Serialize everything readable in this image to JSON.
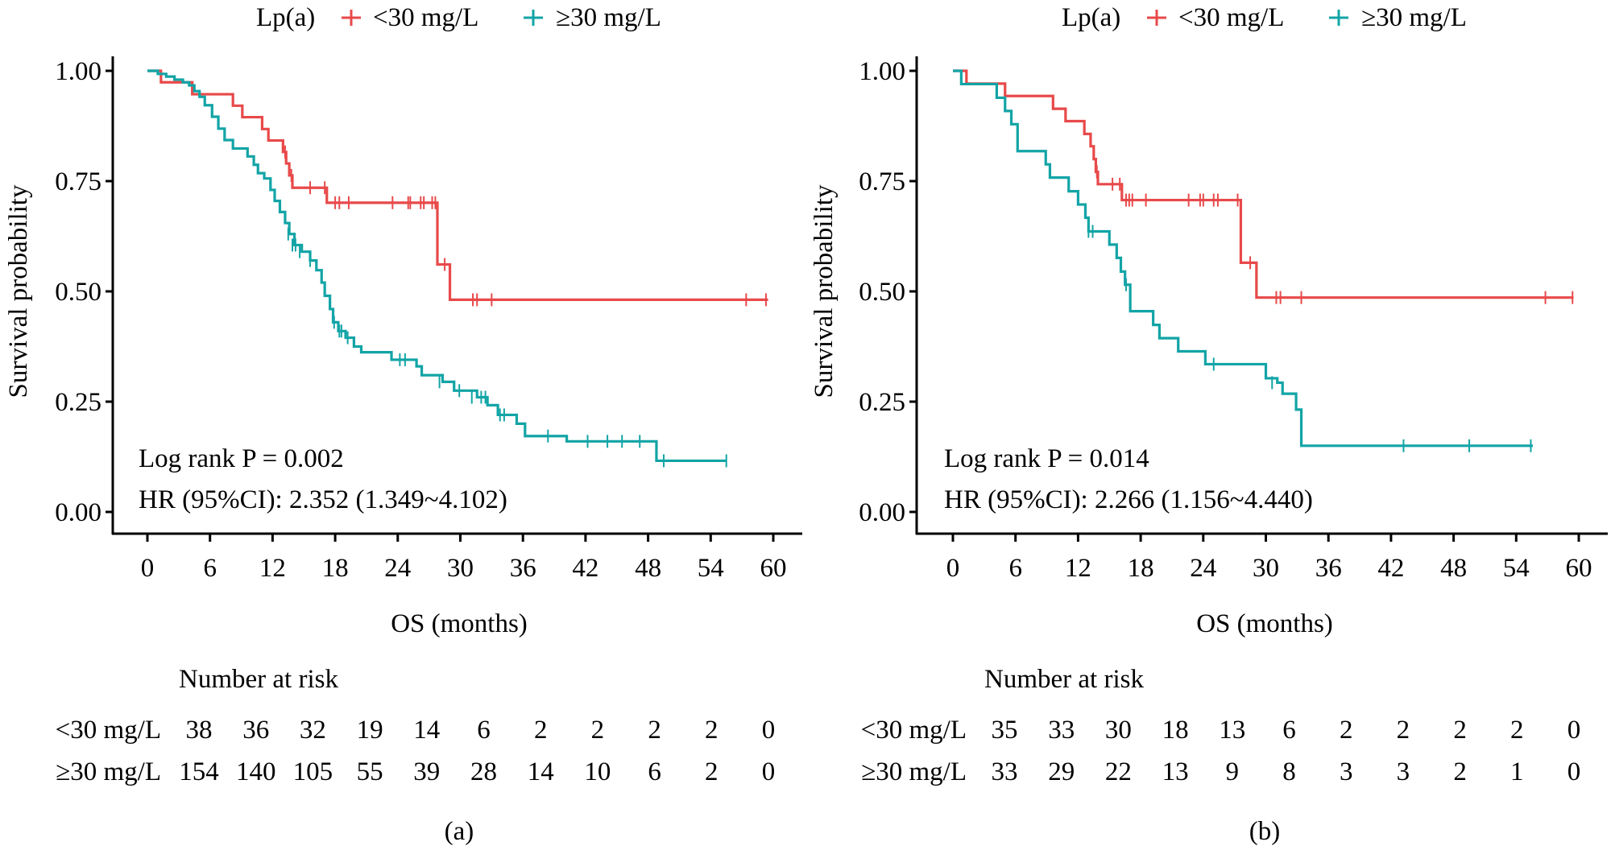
{
  "colors": {
    "low": "#E8494A",
    "high": "#12A4A6",
    "high_label": "#1F7A73",
    "axis": "#000000"
  },
  "chart_data": [
    {
      "type": "line",
      "panel_label": "(a)",
      "title": "",
      "legend": {
        "title": "Lp(a)",
        "placement": "top",
        "entries": [
          "<30 mg/L",
          "≥30 mg/L"
        ]
      },
      "xlabel": "OS (months)",
      "ylabel": "Survival probability",
      "xlim": [
        0,
        60
      ],
      "ylim": [
        0,
        1
      ],
      "xticks": [
        "0",
        "6",
        "12",
        "18",
        "24",
        "30",
        "36",
        "42",
        "48",
        "54",
        "60"
      ],
      "yticks": [
        "0.00",
        "0.25",
        "0.50",
        "0.75",
        "1.00"
      ],
      "annotations": [
        "Log rank P = 0.002",
        "HR (95%CI): 2.352 (1.349~4.102)"
      ],
      "series": [
        {
          "name": "<30 mg/L",
          "steps": [
            [
              0,
              1.0
            ],
            [
              1.3,
              0.974
            ],
            [
              4.3,
              0.947
            ],
            [
              8.2,
              0.921
            ],
            [
              9.1,
              0.895
            ],
            [
              11.0,
              0.868
            ],
            [
              11.6,
              0.842
            ],
            [
              13.0,
              0.816
            ],
            [
              13.3,
              0.79
            ],
            [
              13.6,
              0.763
            ],
            [
              13.9,
              0.735
            ],
            [
              17.2,
              0.701
            ],
            [
              27.8,
              0.561
            ],
            [
              29.0,
              0.481
            ],
            [
              59.5,
              0.481
            ]
          ],
          "censors": [
            [
              13.2,
              0.816
            ],
            [
              13.8,
              0.763
            ],
            [
              15.6,
              0.735
            ],
            [
              17.0,
              0.735
            ],
            [
              18.0,
              0.701
            ],
            [
              18.4,
              0.701
            ],
            [
              19.3,
              0.701
            ],
            [
              23.5,
              0.701
            ],
            [
              25.0,
              0.701
            ],
            [
              25.2,
              0.701
            ],
            [
              26.2,
              0.701
            ],
            [
              26.5,
              0.701
            ],
            [
              27.3,
              0.701
            ],
            [
              27.6,
              0.701
            ],
            [
              28.5,
              0.561
            ],
            [
              31.2,
              0.481
            ],
            [
              31.6,
              0.481
            ],
            [
              33.0,
              0.481
            ],
            [
              57.4,
              0.481
            ],
            [
              59.3,
              0.481
            ]
          ]
        },
        {
          "name": "≥30 mg/L",
          "steps": [
            [
              0,
              1.0
            ],
            [
              1.0,
              0.993
            ],
            [
              1.8,
              0.987
            ],
            [
              2.6,
              0.98
            ],
            [
              3.4,
              0.974
            ],
            [
              4.0,
              0.967
            ],
            [
              4.5,
              0.954
            ],
            [
              5.0,
              0.941
            ],
            [
              5.5,
              0.922
            ],
            [
              6.2,
              0.896
            ],
            [
              6.8,
              0.869
            ],
            [
              7.4,
              0.843
            ],
            [
              8.2,
              0.824
            ],
            [
              9.6,
              0.806
            ],
            [
              10.2,
              0.787
            ],
            [
              10.6,
              0.768
            ],
            [
              11.2,
              0.756
            ],
            [
              11.8,
              0.73
            ],
            [
              12.2,
              0.705
            ],
            [
              12.7,
              0.68
            ],
            [
              13.2,
              0.655
            ],
            [
              13.6,
              0.63
            ],
            [
              14.1,
              0.605
            ],
            [
              14.8,
              0.59
            ],
            [
              15.6,
              0.57
            ],
            [
              16.2,
              0.548
            ],
            [
              16.7,
              0.52
            ],
            [
              17.0,
              0.49
            ],
            [
              17.5,
              0.46
            ],
            [
              17.8,
              0.43
            ],
            [
              18.3,
              0.41
            ],
            [
              19.0,
              0.395
            ],
            [
              19.8,
              0.375
            ],
            [
              20.5,
              0.362
            ],
            [
              23.4,
              0.345
            ],
            [
              25.8,
              0.33
            ],
            [
              26.3,
              0.31
            ],
            [
              28.3,
              0.295
            ],
            [
              29.4,
              0.275
            ],
            [
              31.6,
              0.26
            ],
            [
              32.6,
              0.242
            ],
            [
              33.6,
              0.22
            ],
            [
              35.4,
              0.2
            ],
            [
              36.2,
              0.172
            ],
            [
              40.2,
              0.16
            ],
            [
              48.8,
              0.116
            ],
            [
              55.5,
              0.116
            ]
          ],
          "censors": [
            [
              13.5,
              0.63
            ],
            [
              13.9,
              0.605
            ],
            [
              14.2,
              0.605
            ],
            [
              14.6,
              0.59
            ],
            [
              15.6,
              0.57
            ],
            [
              17.9,
              0.43
            ],
            [
              18.4,
              0.41
            ],
            [
              18.6,
              0.41
            ],
            [
              19.2,
              0.395
            ],
            [
              24.2,
              0.345
            ],
            [
              24.7,
              0.345
            ],
            [
              28.0,
              0.295
            ],
            [
              29.9,
              0.275
            ],
            [
              31.1,
              0.26
            ],
            [
              32.0,
              0.26
            ],
            [
              32.4,
              0.26
            ],
            [
              33.8,
              0.22
            ],
            [
              34.2,
              0.22
            ],
            [
              38.4,
              0.172
            ],
            [
              42.2,
              0.16
            ],
            [
              44.1,
              0.16
            ],
            [
              45.5,
              0.16
            ],
            [
              47.2,
              0.16
            ],
            [
              49.5,
              0.116
            ],
            [
              55.5,
              0.116
            ]
          ]
        }
      ],
      "risk_table": {
        "title": "Number at risk",
        "times": [
          0,
          6,
          12,
          18,
          24,
          30,
          36,
          42,
          48,
          54,
          60
        ],
        "rows": [
          {
            "label": "<30 mg/L",
            "values": [
              "38",
              "36",
              "32",
              "19",
              "14",
              "6",
              "2",
              "2",
              "2",
              "2",
              "0"
            ]
          },
          {
            "label": "≥30 mg/L",
            "values": [
              "154",
              "140",
              "105",
              "55",
              "39",
              "28",
              "14",
              "10",
              "6",
              "2",
              "0"
            ]
          }
        ]
      }
    },
    {
      "type": "line",
      "panel_label": "(b)",
      "title": "",
      "legend": {
        "title": "Lp(a)",
        "placement": "top",
        "entries": [
          "<30 mg/L",
          "≥30 mg/L"
        ]
      },
      "xlabel": "OS (months)",
      "ylabel": "Survival probability",
      "xlim": [
        0,
        60
      ],
      "ylim": [
        0,
        1
      ],
      "xticks": [
        "0",
        "6",
        "12",
        "18",
        "24",
        "30",
        "36",
        "42",
        "48",
        "54",
        "60"
      ],
      "yticks": [
        "0.00",
        "0.25",
        "0.50",
        "0.75",
        "1.00"
      ],
      "annotations": [
        "Log rank P = 0.014",
        "HR (95%CI): 2.266 (1.156~4.440)"
      ],
      "series": [
        {
          "name": "<30 mg/L",
          "steps": [
            [
              0,
              1.0
            ],
            [
              1.3,
              0.971
            ],
            [
              5.0,
              0.943
            ],
            [
              9.6,
              0.914
            ],
            [
              10.8,
              0.886
            ],
            [
              12.6,
              0.857
            ],
            [
              13.2,
              0.829
            ],
            [
              13.5,
              0.8
            ],
            [
              13.7,
              0.771
            ],
            [
              13.9,
              0.743
            ],
            [
              16.2,
              0.707
            ],
            [
              27.6,
              0.565
            ],
            [
              29.1,
              0.486
            ],
            [
              59.5,
              0.486
            ]
          ],
          "censors": [
            [
              13.8,
              0.771
            ],
            [
              15.3,
              0.743
            ],
            [
              16.0,
              0.743
            ],
            [
              16.6,
              0.707
            ],
            [
              16.9,
              0.707
            ],
            [
              17.2,
              0.707
            ],
            [
              18.5,
              0.707
            ],
            [
              22.6,
              0.707
            ],
            [
              23.7,
              0.707
            ],
            [
              24.0,
              0.707
            ],
            [
              25.0,
              0.707
            ],
            [
              25.4,
              0.707
            ],
            [
              27.3,
              0.707
            ],
            [
              28.5,
              0.565
            ],
            [
              31.0,
              0.486
            ],
            [
              31.4,
              0.486
            ],
            [
              33.4,
              0.486
            ],
            [
              56.8,
              0.486
            ],
            [
              59.4,
              0.486
            ]
          ]
        },
        {
          "name": "≥30 mg/L",
          "steps": [
            [
              0,
              1.0
            ],
            [
              0.8,
              0.97
            ],
            [
              4.2,
              0.939
            ],
            [
              5.0,
              0.909
            ],
            [
              5.6,
              0.879
            ],
            [
              6.2,
              0.818
            ],
            [
              8.9,
              0.788
            ],
            [
              9.3,
              0.758
            ],
            [
              11.1,
              0.727
            ],
            [
              12.0,
              0.697
            ],
            [
              12.7,
              0.667
            ],
            [
              13.0,
              0.636
            ],
            [
              15.0,
              0.606
            ],
            [
              15.7,
              0.576
            ],
            [
              16.1,
              0.545
            ],
            [
              16.5,
              0.515
            ],
            [
              17.0,
              0.455
            ],
            [
              19.2,
              0.424
            ],
            [
              19.8,
              0.394
            ],
            [
              21.6,
              0.364
            ],
            [
              24.2,
              0.335
            ],
            [
              30.0,
              0.303
            ],
            [
              31.1,
              0.293
            ],
            [
              31.6,
              0.268
            ],
            [
              32.9,
              0.232
            ],
            [
              33.4,
              0.15
            ],
            [
              55.6,
              0.15
            ]
          ],
          "censors": [
            [
              13.0,
              0.636
            ],
            [
              13.4,
              0.636
            ],
            [
              16.6,
              0.515
            ],
            [
              25.0,
              0.335
            ],
            [
              30.6,
              0.293
            ],
            [
              43.2,
              0.15
            ],
            [
              49.5,
              0.15
            ],
            [
              55.4,
              0.15
            ]
          ]
        }
      ],
      "risk_table": {
        "title": "Number at risk",
        "times": [
          0,
          6,
          12,
          18,
          24,
          30,
          36,
          42,
          48,
          54,
          60
        ],
        "rows": [
          {
            "label": "<30 mg/L",
            "values": [
              "35",
              "33",
              "30",
              "18",
              "13",
              "6",
              "2",
              "2",
              "2",
              "2",
              "0"
            ]
          },
          {
            "label": "≥30 mg/L",
            "values": [
              "33",
              "29",
              "22",
              "13",
              "9",
              "8",
              "3",
              "3",
              "2",
              "1",
              "0"
            ]
          }
        ]
      }
    }
  ]
}
